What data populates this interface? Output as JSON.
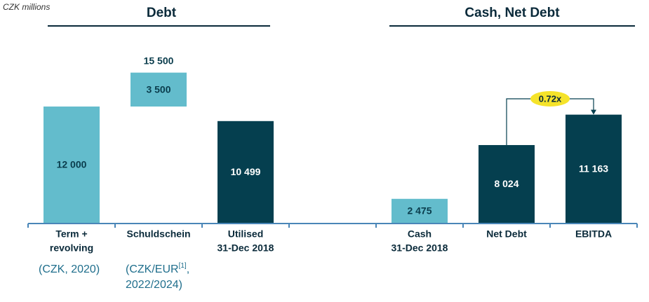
{
  "chart_data": {
    "type": "waterfall",
    "units": "CZK millions",
    "panels": [
      {
        "title": "Debt"
      },
      {
        "title": "Cash, Net Debt"
      }
    ],
    "categories": [
      [
        "Term +",
        "revolving"
      ],
      [
        "Schuldschein"
      ],
      [
        "Utilised",
        "31-Dec 2018"
      ],
      null,
      [
        "Cash",
        "31-Dec 2018"
      ],
      [
        "Net Debt"
      ],
      [
        "EBITDA"
      ]
    ],
    "values": [
      12000,
      3500,
      10499,
      null,
      2475,
      8024,
      11163
    ],
    "value_labels": [
      "12 000",
      "3 500",
      "10 499",
      null,
      "2 475",
      "8 024",
      "11 163"
    ],
    "measure": [
      "absolute",
      "relative",
      "absolute",
      null,
      "absolute",
      "absolute",
      "absolute"
    ],
    "colors": [
      "#63bccc",
      "#63bccc",
      "#053f4f",
      null,
      "#63bccc",
      "#053f4f",
      "#053f4f"
    ],
    "total": {
      "value": 15500,
      "label": "15 500"
    },
    "notes": [
      {
        "text": "(CZK, 2020)"
      },
      {
        "text": "(CZK/EUR",
        "sup": "[1]",
        "tail": ",",
        "line2": "2022/2024)"
      },
      null,
      null,
      null,
      null,
      null
    ],
    "annotation": "0.72x",
    "ylim": [
      0,
      20000
    ]
  }
}
